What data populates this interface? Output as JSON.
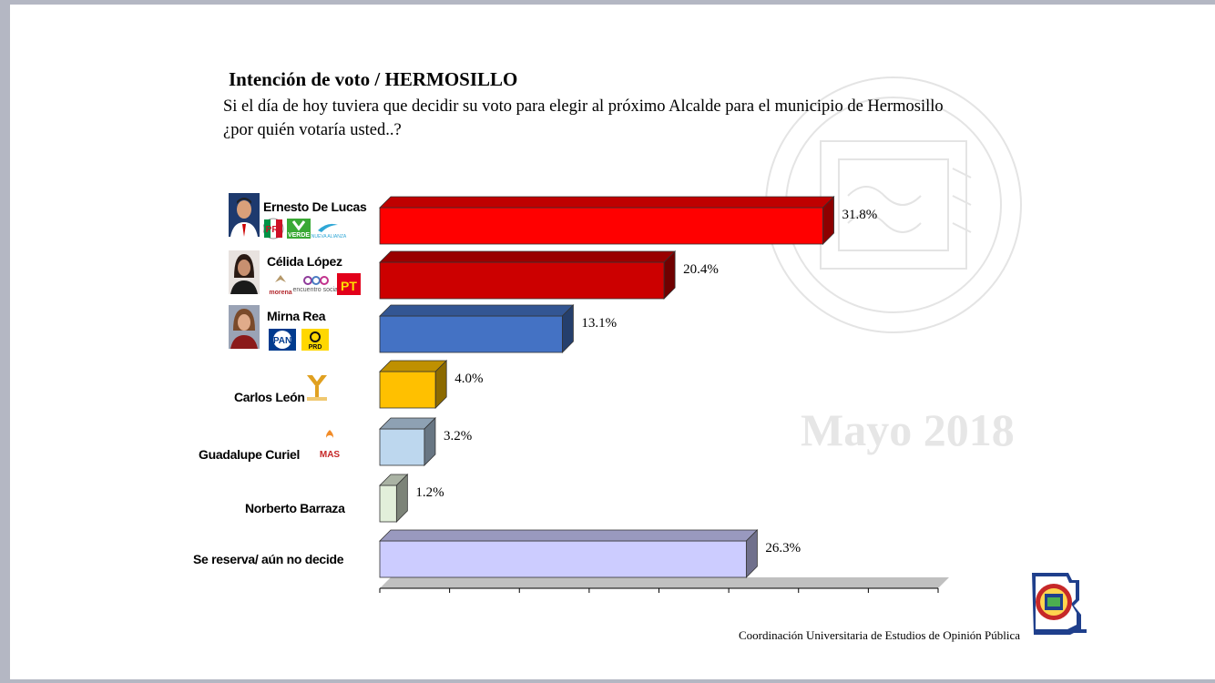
{
  "header": {
    "title": "Intención de voto / HERMOSILLO",
    "question": "Si el día de hoy tuviera que decidir su voto para elegir al próximo Alcalde para el municipio de Hermosillo ¿por quién votaría usted..?"
  },
  "watermark": "Mayo 2018",
  "footer": {
    "credit": "Coordinación Universitaria de Estudios de Opinión Pública"
  },
  "parties": {
    "pri": "PRI",
    "verde": "VERDE",
    "nueva_alianza": "NUEVA ALIANZA",
    "morena": "morena",
    "encuentro": "encuentro social",
    "pt": "PT",
    "pan": "PAN",
    "prd": "PRD",
    "mas": "MAS"
  },
  "chart_data": {
    "type": "bar",
    "orientation": "horizontal",
    "style": "3d",
    "categories": [
      "Ernesto De Lucas",
      "Célida López",
      "Mirna Rea",
      "Carlos León",
      "Guadalupe Curiel",
      "Norberto Barraza",
      "Se reserva/ aún no decide"
    ],
    "values": [
      31.8,
      20.4,
      13.1,
      4.0,
      3.2,
      1.2,
      26.3
    ],
    "value_labels": [
      "31.8%",
      "20.4%",
      "13.1%",
      "4.0%",
      "3.2%",
      "1.2%",
      "26.3%"
    ],
    "colors": [
      "#ff0000",
      "#cc0000",
      "#4472c4",
      "#ffc000",
      "#bdd7ee",
      "#e2efda",
      "#ccccff"
    ],
    "xlim": [
      0,
      40
    ],
    "grid": false,
    "legend": "none"
  }
}
